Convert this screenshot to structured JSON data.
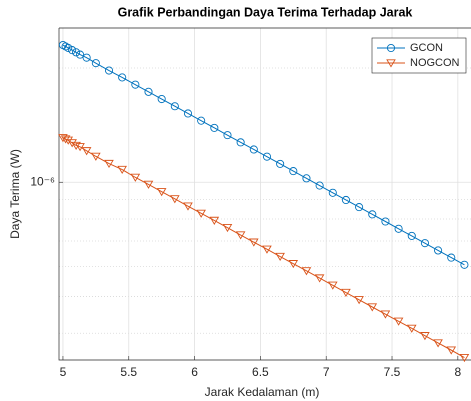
{
  "chart_data": {
    "type": "line",
    "title": "Grafik Perbandingan Daya Terima Terhadap Jarak",
    "xlabel": "Jarak Kedalaman (m)",
    "ylabel": "Daya Terima (W)",
    "x": [
      5,
      5.02,
      5.04,
      5.07,
      5.1,
      5.13,
      5.18,
      5.25,
      5.35,
      5.45,
      5.55,
      5.65,
      5.75,
      5.85,
      5.95,
      6.05,
      6.15,
      6.25,
      6.35,
      6.45,
      6.55,
      6.65,
      6.75,
      6.85,
      6.95,
      7.05,
      7.15,
      7.25,
      7.35,
      7.45,
      7.55,
      7.65,
      7.75,
      7.85,
      7.95,
      8.05
    ],
    "series": [
      {
        "name": "GCON",
        "color": "#0072bd",
        "marker": "circle",
        "values": [
          2.3e-06,
          2.28e-06,
          2.26e-06,
          2.23e-06,
          2.2e-06,
          2.17e-06,
          2.13e-06,
          2.06e-06,
          1.97e-06,
          1.889e-06,
          1.808e-06,
          1.731e-06,
          1.657e-06,
          1.586e-06,
          1.518e-06,
          1.453e-06,
          1.391e-06,
          1.331e-06,
          1.274e-06,
          1.22e-06,
          1.168e-06,
          1.118e-06,
          1.07e-06,
          1.024e-06,
          9.8e-07,
          9.38e-07,
          8.98e-07,
          8.6e-07,
          8.23e-07,
          7.88e-07,
          7.54e-07,
          7.22e-07,
          6.91e-07,
          6.61e-07,
          6.33e-07,
          6.06e-07
        ]
      },
      {
        "name": "NOGCON",
        "color": "#d95319",
        "marker": "triangle-down",
        "values": [
          1.31e-06,
          1.3e-06,
          1.29e-06,
          1.27e-06,
          1.25e-06,
          1.24e-06,
          1.21e-06,
          1.17e-06,
          1.12e-06,
          1.08e-06,
          1.03e-06,
          9.87e-07,
          9.44e-07,
          9.04e-07,
          8.65e-07,
          8.28e-07,
          7.93e-07,
          7.59e-07,
          7.26e-07,
          6.95e-07,
          6.66e-07,
          6.37e-07,
          6.1e-07,
          5.84e-07,
          5.59e-07,
          5.35e-07,
          5.12e-07,
          4.9e-07,
          4.69e-07,
          4.49e-07,
          4.3e-07,
          4.12e-07,
          3.94e-07,
          3.77e-07,
          3.61e-07,
          3.45e-07
        ]
      }
    ],
    "xlim": [
      4.97,
      8.1
    ],
    "xticks": [
      5,
      5.5,
      6,
      6.5,
      7,
      7.5,
      8
    ],
    "ylim": [
      3.4e-07,
      2.55e-06
    ],
    "yticks": [
      {
        "value": 1e-06,
        "label": "10⁻⁶"
      }
    ],
    "yminorticks": [
      4e-07,
      5e-07,
      6e-07,
      7e-07,
      8e-07,
      9e-07,
      2e-06
    ],
    "ylog": true,
    "grid": true,
    "legend": "top-right"
  }
}
